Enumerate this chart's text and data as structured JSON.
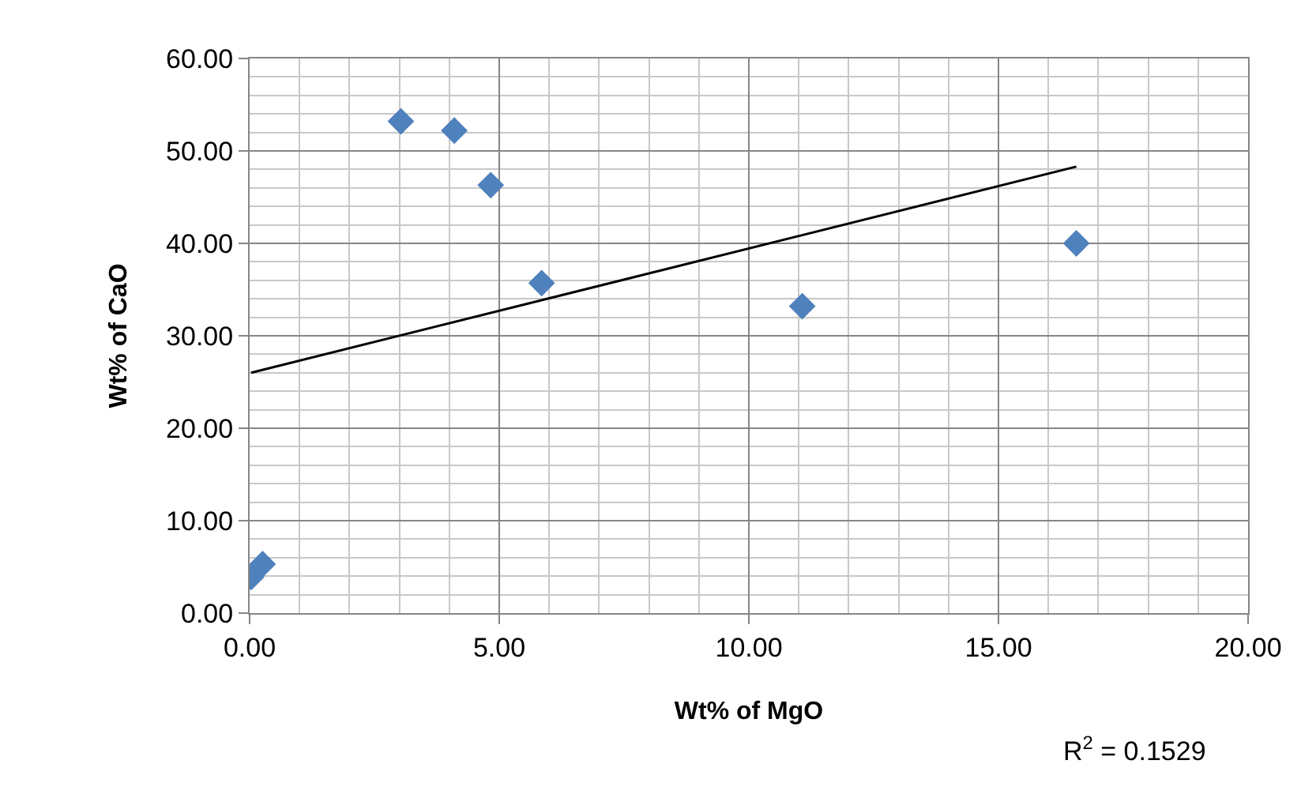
{
  "chart_data": {
    "type": "scatter",
    "xlabel": "Wt% of MgO",
    "ylabel": "Wt% of CaO",
    "series": [
      {
        "color": "#4f81bd",
        "marker": "diamond",
        "x": [
          0.03,
          0.26,
          3.03,
          4.1,
          4.83,
          5.85,
          11.07,
          16.56
        ],
        "values": [
          3.9,
          5.3,
          53.2,
          52.2,
          46.3,
          35.7,
          33.2,
          40.0
        ]
      },
      {
        "type": "line",
        "color": "#000000",
        "marker": "none",
        "line_style": "solid",
        "x": [
          0.03,
          16.56
        ],
        "values": [
          26.0,
          48.3
        ]
      }
    ],
    "annotations": [
      "R$^{2}$ = 0.1529"
    ],
    "xlim": [
      0,
      20
    ],
    "xticks": [
      {
        "value": 0,
        "label": "0.00"
      },
      {
        "value": 5,
        "label": "5.00"
      },
      {
        "value": 10,
        "label": "10.00"
      },
      {
        "value": 15,
        "label": "15.00"
      },
      {
        "value": 20,
        "label": "20.00"
      }
    ],
    "ylim": [
      0,
      60
    ],
    "yticks": [
      {
        "value": 0,
        "label": "0.00"
      },
      {
        "value": 10,
        "label": "10.00"
      },
      {
        "value": 20,
        "label": "20.00"
      },
      {
        "value": 30,
        "label": "30.00"
      },
      {
        "value": 40,
        "label": "40.00"
      },
      {
        "value": 50,
        "label": "50.00"
      },
      {
        "value": 60,
        "label": "60.00"
      }
    ],
    "grid": true
  }
}
